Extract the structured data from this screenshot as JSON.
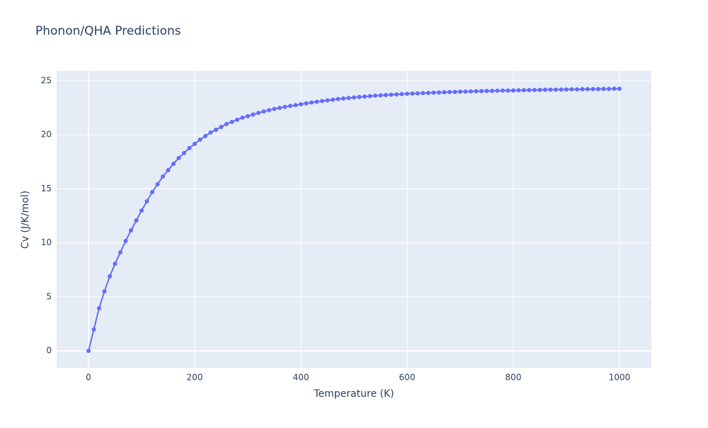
{
  "chart_data": {
    "type": "line",
    "title": "Phonon/QHA Predictions",
    "x_label": "Temperature (K)",
    "y_label": "Cv (J/K/mol)",
    "x": [
      0,
      10,
      20,
      30,
      40,
      50,
      60,
      70,
      80,
      90,
      100,
      110,
      120,
      130,
      140,
      150,
      160,
      170,
      180,
      190,
      200,
      210,
      220,
      230,
      240,
      250,
      260,
      270,
      280,
      290,
      300,
      310,
      320,
      330,
      340,
      350,
      360,
      370,
      380,
      390,
      400,
      410,
      420,
      430,
      440,
      450,
      460,
      470,
      480,
      490,
      500,
      510,
      520,
      530,
      540,
      550,
      560,
      570,
      580,
      590,
      600,
      610,
      620,
      630,
      640,
      650,
      660,
      670,
      680,
      690,
      700,
      710,
      720,
      730,
      740,
      750,
      760,
      770,
      780,
      790,
      800,
      810,
      820,
      830,
      840,
      850,
      860,
      870,
      880,
      890,
      900,
      910,
      920,
      930,
      940,
      950,
      960,
      970,
      980,
      990,
      1000
    ],
    "series": [
      {
        "name": "Cv",
        "color": "#636efa",
        "values": [
          0,
          1.97,
          3.94,
          5.51,
          6.89,
          8.07,
          9.12,
          10.17,
          11.15,
          12.07,
          12.99,
          13.85,
          14.7,
          15.42,
          16.14,
          16.73,
          17.32,
          17.85,
          18.31,
          18.77,
          19.16,
          19.55,
          19.88,
          20.21,
          20.47,
          20.73,
          21.0,
          21.2,
          21.39,
          21.59,
          21.72,
          21.88,
          22.03,
          22.16,
          22.28,
          22.39,
          22.49,
          22.58,
          22.67,
          22.75,
          22.83,
          22.91,
          22.99,
          23.06,
          23.13,
          23.19,
          23.25,
          23.31,
          23.36,
          23.41,
          23.46,
          23.5,
          23.54,
          23.58,
          23.62,
          23.65,
          23.68,
          23.71,
          23.74,
          23.77,
          23.8,
          23.82,
          23.84,
          23.86,
          23.88,
          23.9,
          23.92,
          23.94,
          23.96,
          23.97,
          23.99,
          24.0,
          24.02,
          24.03,
          24.04,
          24.06,
          24.07,
          24.08,
          24.09,
          24.1,
          24.11,
          24.12,
          24.13,
          24.14,
          24.15,
          24.16,
          24.17,
          24.18,
          24.18,
          24.19,
          24.2,
          24.21,
          24.21,
          24.22,
          24.23,
          24.23,
          24.24,
          24.25,
          24.25,
          24.26,
          24.26
        ]
      }
    ],
    "xlim": [
      -60,
      1060
    ],
    "ylim": [
      -1.57,
      25.92
    ],
    "xticks": [
      0,
      200,
      400,
      600,
      800,
      1000
    ],
    "yticks": [
      0,
      5,
      10,
      15,
      20,
      25
    ],
    "grid": true
  }
}
